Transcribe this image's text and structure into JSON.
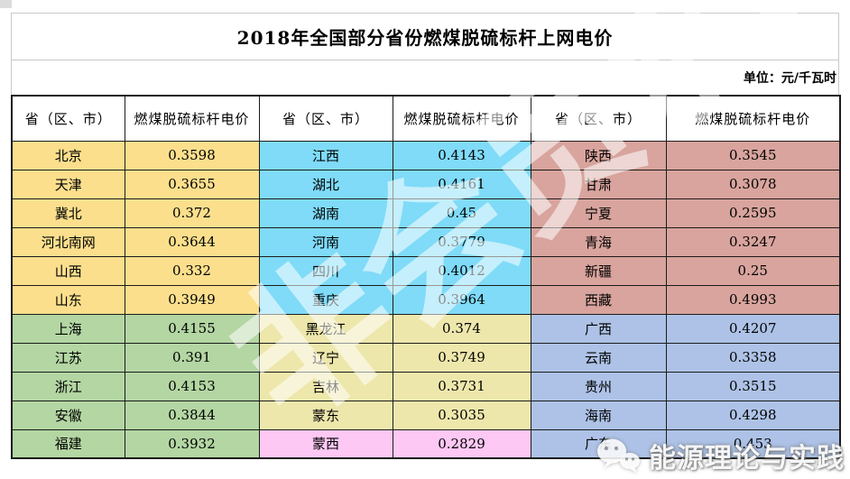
{
  "title": "2018年全国部分省份燃煤脱硫标杆上网电价",
  "unit_label": "单位：元/千瓦时",
  "colors": {
    "page_background": "#ffffff",
    "table_border": "#1b1b1b",
    "outer_border_gray": "#c9c9c9",
    "watermark_white": "rgba(255,255,255,0.55)"
  },
  "region_colors": {
    "north": "#fbdf8d",
    "east": "#b3d6a3",
    "central_southwest": "#7fdbf8",
    "northeast": "#eee7ac",
    "mengxi": "#fdc8f4",
    "northwest": "#d8a49d",
    "south": "#adc2e6"
  },
  "watermarks": {
    "diagonal_text": "非会员水印",
    "brand_text": "能源理论与实践",
    "brand_icon": "wechat-icon"
  },
  "chart_data": {
    "type": "table",
    "title": "2018年全国部分省份燃煤脱硫标杆上网电价",
    "unit": "元/千瓦时",
    "column_headers": [
      "省（区、市）",
      "燃煤脱硫标杆电价",
      "省（区、市）",
      "燃煤脱硫标杆电价",
      "省（区、市）",
      "燃煤脱硫标杆电价"
    ],
    "records": [
      {
        "province": "北京",
        "price": "0.3598",
        "region": "north"
      },
      {
        "province": "天津",
        "price": "0.3655",
        "region": "north"
      },
      {
        "province": "冀北",
        "price": "0.372",
        "region": "north"
      },
      {
        "province": "河北南网",
        "price": "0.3644",
        "region": "north"
      },
      {
        "province": "山西",
        "price": "0.332",
        "region": "north"
      },
      {
        "province": "山东",
        "price": "0.3949",
        "region": "north"
      },
      {
        "province": "上海",
        "price": "0.4155",
        "region": "east"
      },
      {
        "province": "江苏",
        "price": "0.391",
        "region": "east"
      },
      {
        "province": "浙江",
        "price": "0.4153",
        "region": "east"
      },
      {
        "province": "安徽",
        "price": "0.3844",
        "region": "east"
      },
      {
        "province": "福建",
        "price": "0.3932",
        "region": "east"
      },
      {
        "province": "江西",
        "price": "0.4143",
        "region": "central_southwest"
      },
      {
        "province": "湖北",
        "price": "0.4161",
        "region": "central_southwest"
      },
      {
        "province": "湖南",
        "price": "0.45",
        "region": "central_southwest"
      },
      {
        "province": "河南",
        "price": "0.3779",
        "region": "central_southwest"
      },
      {
        "province": "四川",
        "price": "0.4012",
        "region": "central_southwest"
      },
      {
        "province": "重庆",
        "price": "0.3964",
        "region": "central_southwest"
      },
      {
        "province": "黑龙江",
        "price": "0.374",
        "region": "northeast"
      },
      {
        "province": "辽宁",
        "price": "0.3749",
        "region": "northeast"
      },
      {
        "province": "吉林",
        "price": "0.3731",
        "region": "northeast"
      },
      {
        "province": "蒙东",
        "price": "0.3035",
        "region": "northeast"
      },
      {
        "province": "蒙西",
        "price": "0.2829",
        "region": "mengxi"
      },
      {
        "province": "陕西",
        "price": "0.3545",
        "region": "northwest"
      },
      {
        "province": "甘肃",
        "price": "0.3078",
        "region": "northwest"
      },
      {
        "province": "宁夏",
        "price": "0.2595",
        "region": "northwest"
      },
      {
        "province": "青海",
        "price": "0.3247",
        "region": "northwest"
      },
      {
        "province": "新疆",
        "price": "0.25",
        "region": "northwest"
      },
      {
        "province": "西藏",
        "price": "0.4993",
        "region": "northwest"
      },
      {
        "province": "广西",
        "price": "0.4207",
        "region": "south"
      },
      {
        "province": "云南",
        "price": "0.3358",
        "region": "south"
      },
      {
        "province": "贵州",
        "price": "0.3515",
        "region": "south"
      },
      {
        "province": "海南",
        "price": "0.4298",
        "region": "south"
      },
      {
        "province": "广东",
        "price": "0.453",
        "region": "south"
      }
    ],
    "layout": {
      "rows_per_column_group": 11,
      "column_groups": 3
    }
  }
}
